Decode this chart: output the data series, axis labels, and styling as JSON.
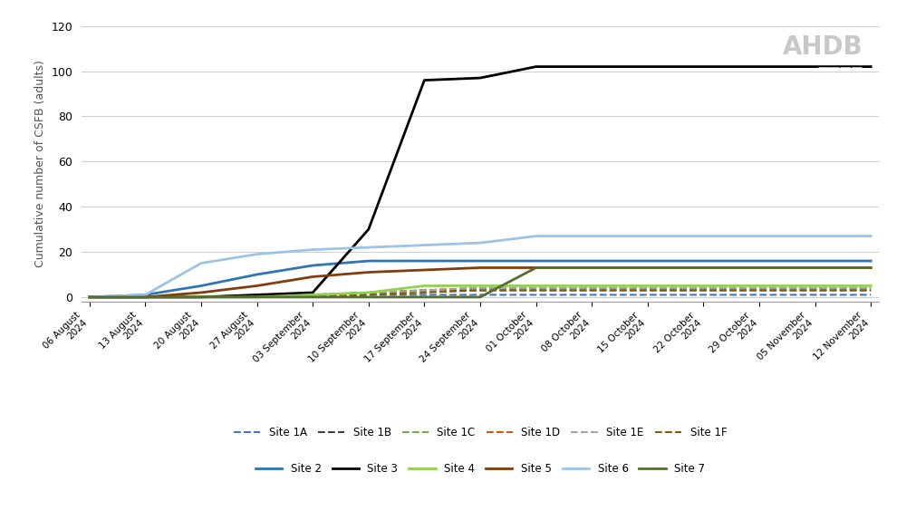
{
  "ylabel": "Cumulative number of CSFB (adults)",
  "ylim": [
    -2,
    120
  ],
  "yticks": [
    0,
    20,
    40,
    60,
    80,
    100,
    120
  ],
  "background_color": "#ffffff",
  "grid_color": "#d0d0d0",
  "dates": [
    "2024-08-06",
    "2024-08-13",
    "2024-08-20",
    "2024-08-27",
    "2024-09-03",
    "2024-09-10",
    "2024-09-17",
    "2024-09-24",
    "2024-10-01",
    "2024-10-08",
    "2024-10-15",
    "2024-10-22",
    "2024-10-29",
    "2024-11-05",
    "2024-11-12"
  ],
  "xtick_labels": [
    "06 August\n2024",
    "13 August\n2024",
    "20 August\n2024",
    "27 August\n2024",
    "03 September\n2024",
    "10 September\n2024",
    "17 September\n2024",
    "24 September\n2024",
    "01 October\n2024",
    "08 October\n2024",
    "15 October\n2024",
    "22 October\n2024",
    "29 October\n2024",
    "05 November\n2024",
    "12 November\n2024"
  ],
  "series": {
    "Site 1A": {
      "color": "#4472c4",
      "linestyle": "dashed",
      "linewidth": 1.5,
      "values": [
        0,
        0,
        0,
        0,
        0,
        1,
        1,
        1,
        1,
        1,
        1,
        1,
        1,
        1,
        1
      ]
    },
    "Site 1B": {
      "color": "#404040",
      "linestyle": "dashed",
      "linewidth": 1.5,
      "values": [
        0,
        0,
        0,
        1,
        1,
        2,
        3,
        3,
        3,
        3,
        3,
        3,
        3,
        3,
        3
      ]
    },
    "Site 1C": {
      "color": "#70ad47",
      "linestyle": "dashed",
      "linewidth": 1.5,
      "values": [
        0,
        0,
        0,
        0,
        0,
        1,
        3,
        4,
        4,
        4,
        4,
        4,
        4,
        4,
        4
      ]
    },
    "Site 1D": {
      "color": "#c55a11",
      "linestyle": "dashed",
      "linewidth": 1.5,
      "values": [
        0,
        0,
        0,
        0,
        1,
        2,
        3,
        4,
        4,
        4,
        4,
        4,
        4,
        4,
        4
      ]
    },
    "Site 1E": {
      "color": "#a5a5a5",
      "linestyle": "dashed",
      "linewidth": 1.5,
      "values": [
        0,
        0,
        0,
        0,
        1,
        2,
        3,
        4,
        4,
        4,
        4,
        4,
        4,
        4,
        4
      ]
    },
    "Site 1F": {
      "color": "#7f6000",
      "linestyle": "dashed",
      "linewidth": 1.5,
      "values": [
        0,
        0,
        0,
        0,
        0,
        1,
        2,
        3,
        3,
        3,
        3,
        3,
        3,
        3,
        3
      ]
    },
    "Site 2": {
      "color": "#2e75b6",
      "linestyle": "solid",
      "linewidth": 2.0,
      "values": [
        0,
        1,
        5,
        10,
        14,
        16,
        16,
        16,
        16,
        16,
        16,
        16,
        16,
        16,
        16
      ]
    },
    "Site 3": {
      "color": "#000000",
      "linestyle": "solid",
      "linewidth": 2.0,
      "values": [
        0,
        0,
        0,
        1,
        2,
        30,
        96,
        97,
        102,
        102,
        102,
        102,
        102,
        102,
        102
      ]
    },
    "Site 4": {
      "color": "#92d050",
      "linestyle": "solid",
      "linewidth": 2.0,
      "values": [
        0,
        0,
        0,
        0,
        1,
        2,
        5,
        5,
        5,
        5,
        5,
        5,
        5,
        5,
        5
      ]
    },
    "Site 5": {
      "color": "#833c0b",
      "linestyle": "solid",
      "linewidth": 2.0,
      "values": [
        0,
        0,
        2,
        5,
        9,
        11,
        12,
        13,
        13,
        13,
        13,
        13,
        13,
        13,
        13
      ]
    },
    "Site 6": {
      "color": "#9dc3e6",
      "linestyle": "solid",
      "linewidth": 2.0,
      "values": [
        0,
        1,
        15,
        19,
        21,
        22,
        23,
        24,
        27,
        27,
        27,
        27,
        27,
        27,
        27
      ]
    },
    "Site 7": {
      "color": "#556b2f",
      "linestyle": "solid",
      "linewidth": 2.0,
      "values": [
        0,
        0,
        0,
        0,
        0,
        0,
        0,
        0,
        13,
        13,
        13,
        13,
        13,
        13,
        13
      ]
    }
  },
  "legend_row1": [
    "Site 1A",
    "Site 1B",
    "Site 1C",
    "Site 1D",
    "Site 1E",
    "Site 1F"
  ],
  "legend_row2": [
    "Site 2",
    "Site 3",
    "Site 4",
    "Site 5",
    "Site 6",
    "Site 7"
  ]
}
